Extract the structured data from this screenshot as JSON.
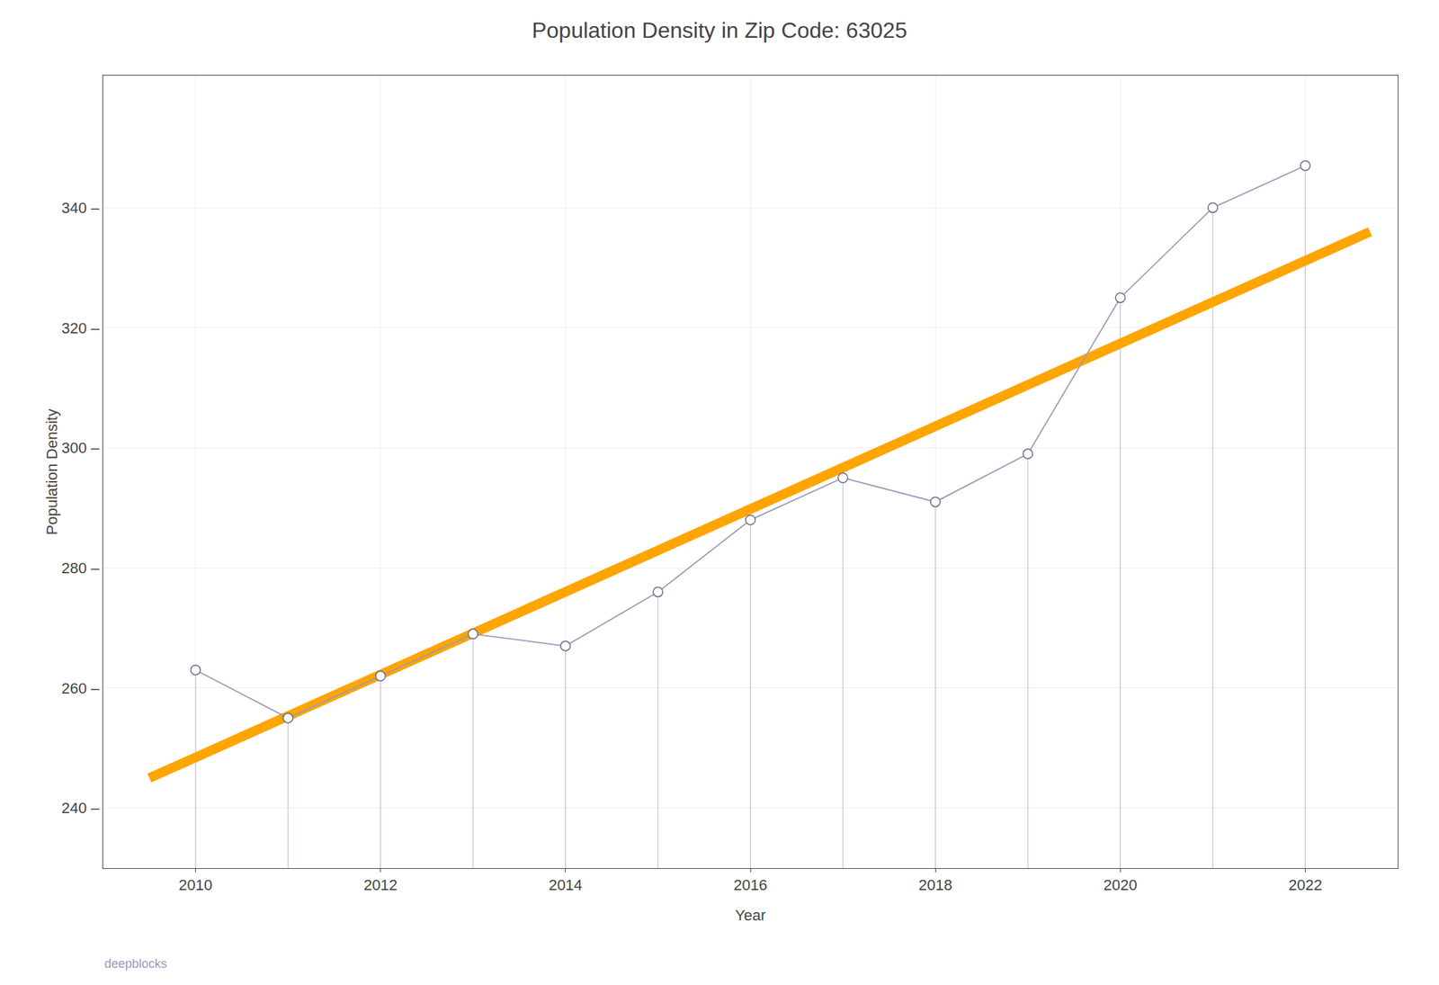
{
  "chart_data": {
    "type": "line",
    "title": "Population Density in Zip Code: 63025",
    "xlabel": "Year",
    "ylabel": "Population Density",
    "x": [
      2010,
      2011,
      2012,
      2013,
      2014,
      2015,
      2016,
      2017,
      2018,
      2019,
      2020,
      2021,
      2022
    ],
    "series": [
      {
        "values": [
          263,
          255,
          262,
          269,
          267,
          276,
          288,
          295,
          291,
          299,
          325,
          340,
          347
        ],
        "color": "#9999bb",
        "marker": "circle"
      },
      {
        "x": [
          2009.5,
          2022.7
        ],
        "values": [
          245,
          336
        ],
        "color": "#FFA500",
        "line_style": "solid"
      }
    ],
    "xlim": [
      2009.0,
      2023.0
    ],
    "ylim": [
      230,
      362
    ],
    "xticks": [
      2010,
      2012,
      2014,
      2016,
      2018,
      2020,
      2022
    ],
    "yticks": [
      {
        "value": 240,
        "label": "240 –"
      },
      {
        "value": 260,
        "label": "260 –"
      },
      {
        "value": 280,
        "label": "280 –"
      },
      {
        "value": 300,
        "label": "300 –"
      },
      {
        "value": 320,
        "label": "320 –"
      },
      {
        "value": 340,
        "label": "340 –"
      }
    ],
    "grid": true,
    "annotations": [
      "deepblocks"
    ]
  }
}
